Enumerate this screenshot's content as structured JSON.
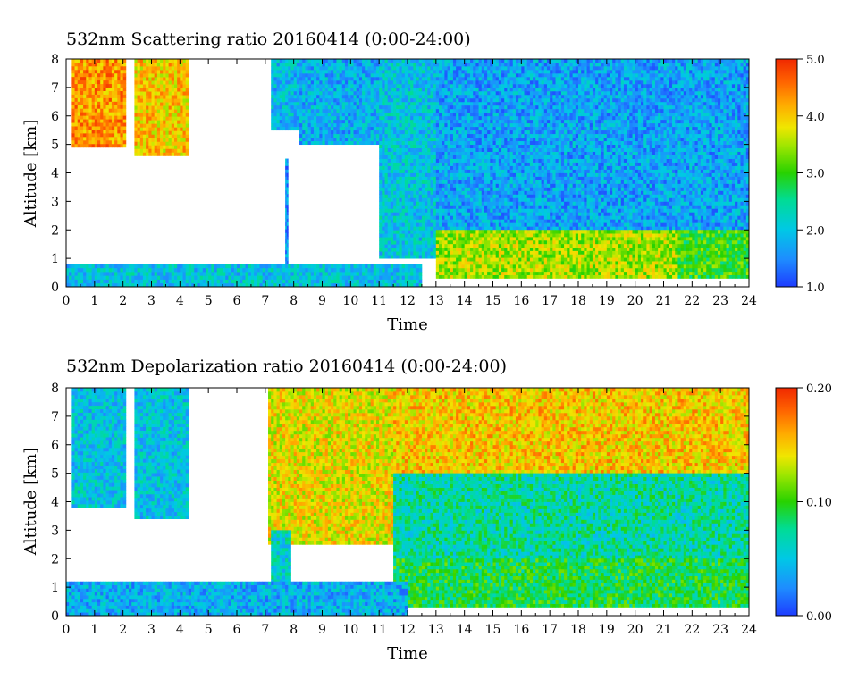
{
  "chart_data": [
    {
      "type": "heatmap",
      "title": "532nm Scattering ratio  20160414 (0:00-24:00)",
      "xlabel": "Time",
      "ylabel": "Altitude [km]",
      "xlim": [
        0,
        24
      ],
      "ylim": [
        0,
        8
      ],
      "x_ticks": [
        "0",
        "1",
        "2",
        "3",
        "4",
        "5",
        "6",
        "7",
        "8",
        "9",
        "10",
        "11",
        "12",
        "13",
        "14",
        "15",
        "16",
        "17",
        "18",
        "19",
        "20",
        "21",
        "22",
        "23",
        "24"
      ],
      "y_ticks": [
        "0",
        "1",
        "2",
        "3",
        "4",
        "5",
        "6",
        "7",
        "8"
      ],
      "colorbar": {
        "min": 1.0,
        "max": 5.0,
        "ticks": [
          "1.0",
          "2.0",
          "3.0",
          "4.0",
          "5.0"
        ]
      },
      "regions": [
        {
          "t": [
            0.2,
            2.1
          ],
          "alt": [
            4.9,
            8
          ],
          "value": 4.3
        },
        {
          "t": [
            2.4,
            4.3
          ],
          "alt": [
            4.6,
            8
          ],
          "value": 4.0
        },
        {
          "t": [
            7.2,
            8.2
          ],
          "alt": [
            5.5,
            8
          ],
          "value": 1.9
        },
        {
          "t": [
            7.7,
            7.8
          ],
          "alt": [
            0.3,
            4.5
          ],
          "value": 1.6
        },
        {
          "t": [
            8.2,
            11.5
          ],
          "alt": [
            5.0,
            8
          ],
          "value": 1.8
        },
        {
          "t": [
            11.0,
            13.0
          ],
          "alt": [
            1.0,
            8
          ],
          "value": 2.0
        },
        {
          "t": [
            13.0,
            24.0
          ],
          "alt": [
            2.0,
            8
          ],
          "value": 1.7
        },
        {
          "t": [
            13.0,
            21.5
          ],
          "alt": [
            0.3,
            2.0
          ],
          "value": 3.5
        },
        {
          "t": [
            21.5,
            24.0
          ],
          "alt": [
            0.3,
            2.0
          ],
          "value": 3.0
        },
        {
          "t": [
            0.0,
            12.5
          ],
          "alt": [
            0.0,
            0.8
          ],
          "value": 2.0
        }
      ]
    },
    {
      "type": "heatmap",
      "title": "532nm Depolarization ratio  20160414 (0:00-24:00)",
      "xlabel": "Time",
      "ylabel": "Altitude [km]",
      "xlim": [
        0,
        24
      ],
      "ylim": [
        0,
        8
      ],
      "x_ticks": [
        "0",
        "1",
        "2",
        "3",
        "4",
        "5",
        "6",
        "7",
        "8",
        "9",
        "10",
        "11",
        "12",
        "13",
        "14",
        "15",
        "16",
        "17",
        "18",
        "19",
        "20",
        "21",
        "22",
        "23",
        "24"
      ],
      "y_ticks": [
        "0",
        "1",
        "2",
        "3",
        "4",
        "5",
        "6",
        "7",
        "8"
      ],
      "colorbar": {
        "min": 0.0,
        "max": 0.2,
        "ticks": [
          "0.00",
          "0.10",
          "0.20"
        ]
      },
      "regions": [
        {
          "t": [
            0.2,
            2.1
          ],
          "alt": [
            3.8,
            8
          ],
          "value": 0.05
        },
        {
          "t": [
            2.4,
            4.3
          ],
          "alt": [
            3.4,
            8
          ],
          "value": 0.05
        },
        {
          "t": [
            7.1,
            11.5
          ],
          "alt": [
            2.5,
            8
          ],
          "value": 0.14
        },
        {
          "t": [
            7.2,
            7.9
          ],
          "alt": [
            0.3,
            3.0
          ],
          "value": 0.06
        },
        {
          "t": [
            11.5,
            24.0
          ],
          "alt": [
            5.0,
            8
          ],
          "value": 0.15
        },
        {
          "t": [
            11.5,
            24.0
          ],
          "alt": [
            2.0,
            5.0
          ],
          "value": 0.07
        },
        {
          "t": [
            11.5,
            24.0
          ],
          "alt": [
            0.3,
            2.0
          ],
          "value": 0.09
        },
        {
          "t": [
            0.0,
            12.0
          ],
          "alt": [
            0.0,
            1.2
          ],
          "value": 0.04
        }
      ]
    }
  ]
}
